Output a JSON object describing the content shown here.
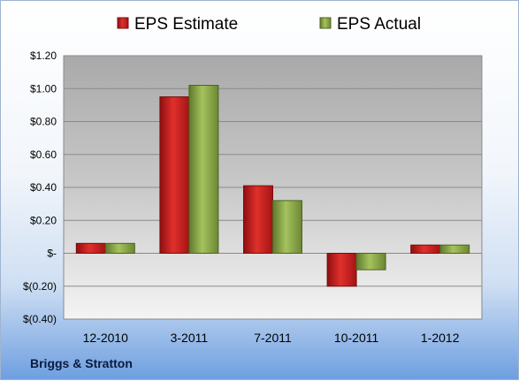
{
  "company_label": "Briggs & Stratton",
  "chart_data": {
    "type": "bar",
    "categories": [
      "12-2010",
      "3-2011",
      "7-2011",
      "10-2011",
      "1-2012"
    ],
    "series": [
      {
        "name": "EPS Estimate",
        "values": [
          0.06,
          0.95,
          0.41,
          -0.2,
          0.05
        ],
        "color": "#cc1f1f"
      },
      {
        "name": "EPS Actual",
        "values": [
          0.06,
          1.02,
          0.32,
          -0.1,
          0.05
        ],
        "color": "#8fae4a"
      }
    ],
    "ylim": [
      -0.4,
      1.2
    ],
    "yticks": [
      1.2,
      1.0,
      0.8,
      0.6,
      0.4,
      0.2,
      0,
      -0.2,
      -0.4
    ],
    "ytick_labels": [
      "$1.20",
      "$1.00",
      "$0.80",
      "$0.60",
      "$0.40",
      "$0.20",
      "$-",
      "$(0.20)",
      "$(0.40)"
    ],
    "legend_position": "top",
    "grid": true
  }
}
